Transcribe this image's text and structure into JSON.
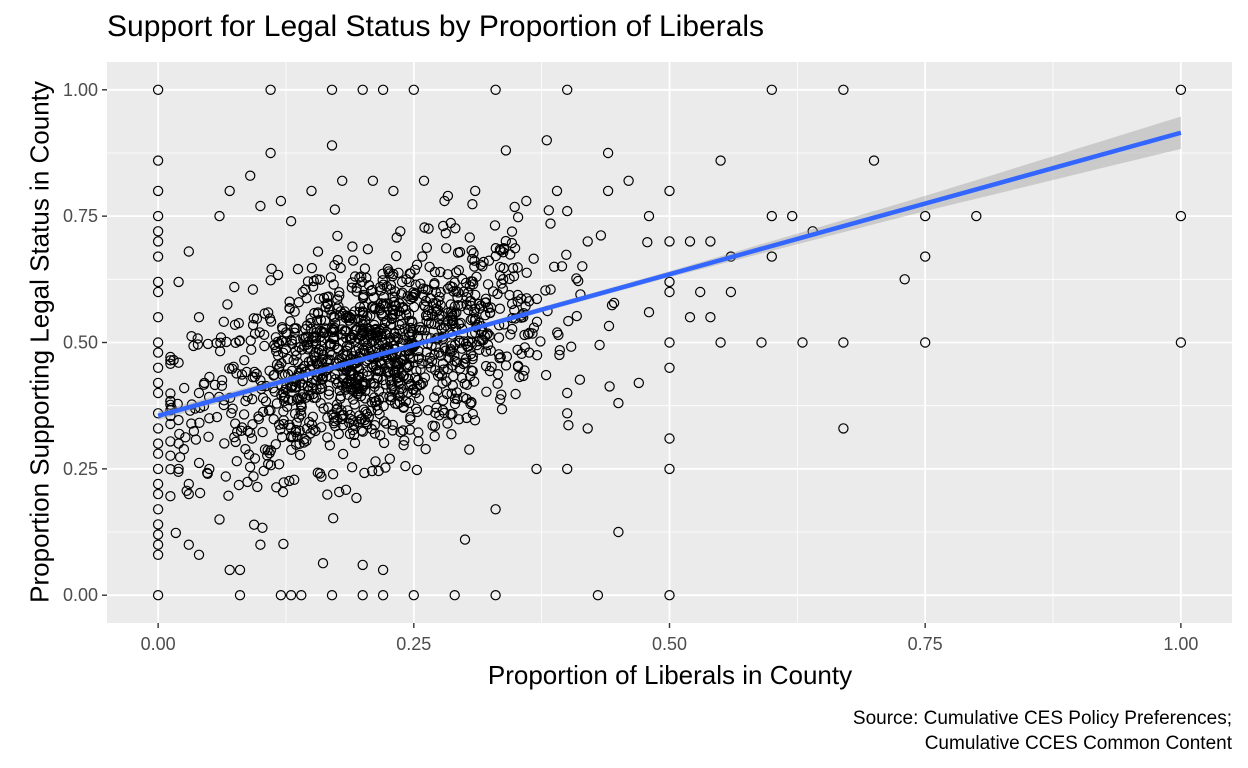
{
  "chart_data": {
    "type": "scatter",
    "title": "Support for Legal Status by Proportion of Liberals",
    "xlabel": "Proportion of Liberals in County",
    "ylabel": "Proportion Supporting Legal Status in County",
    "caption_lines": [
      "Source: Cumulative CES Policy Preferences;",
      "Cumulative CCES Common Content"
    ],
    "xlim": [
      -0.05,
      1.05
    ],
    "ylim": [
      -0.055,
      1.055
    ],
    "x_ticks": [
      0,
      0.25,
      0.5,
      0.75,
      1
    ],
    "x_tick_labels": [
      "0.00",
      "0.25",
      "0.50",
      "0.75",
      "1.00"
    ],
    "y_ticks": [
      0,
      0.25,
      0.5,
      0.75,
      1
    ],
    "y_tick_labels": [
      "0.00",
      "0.25",
      "0.50",
      "0.75",
      "1.00"
    ],
    "grid": true,
    "fit_line": {
      "method": "linear",
      "x": [
        0,
        1
      ],
      "y": [
        0.355,
        0.915
      ],
      "ci_halfwidth_at_x": [
        [
          0,
          0.009
        ],
        [
          0.25,
          0.004
        ],
        [
          0.5,
          0.006
        ],
        [
          0.75,
          0.015
        ],
        [
          1,
          0.032
        ]
      ],
      "color": "#3366FF"
    },
    "point_style": {
      "shape": "open-circle",
      "stroke": "#000000"
    },
    "points": [
      [
        0,
        1
      ],
      [
        0,
        0.86
      ],
      [
        0,
        0.8
      ],
      [
        0,
        0.75
      ],
      [
        0,
        0.72
      ],
      [
        0,
        0.7
      ],
      [
        0,
        0.67
      ],
      [
        0,
        0.62
      ],
      [
        0,
        0.6
      ],
      [
        0,
        0.55
      ],
      [
        0,
        0.5
      ],
      [
        0,
        0.48
      ],
      [
        0,
        0.45
      ],
      [
        0,
        0.42
      ],
      [
        0,
        0.4
      ],
      [
        0,
        0.36
      ],
      [
        0,
        0.33
      ],
      [
        0,
        0.3
      ],
      [
        0,
        0.28
      ],
      [
        0,
        0.25
      ],
      [
        0,
        0.22
      ],
      [
        0,
        0.2
      ],
      [
        0,
        0.17
      ],
      [
        0,
        0.14
      ],
      [
        0,
        0.12
      ],
      [
        0,
        0.1
      ],
      [
        0,
        0.08
      ],
      [
        0,
        0
      ],
      [
        1,
        1
      ],
      [
        1,
        0.75
      ],
      [
        1,
        0.5
      ],
      [
        0.11,
        1
      ],
      [
        0.17,
        1
      ],
      [
        0.2,
        1
      ],
      [
        0.22,
        1
      ],
      [
        0.25,
        1
      ],
      [
        0.33,
        1
      ],
      [
        0.4,
        1
      ],
      [
        0.6,
        1
      ],
      [
        0.67,
        1
      ],
      [
        0.11,
        0.875
      ],
      [
        0.17,
        0.89
      ],
      [
        0.38,
        0.9
      ],
      [
        0.44,
        0.875
      ],
      [
        0.7,
        0.86
      ],
      [
        0.55,
        0.86
      ],
      [
        0.8,
        0.75
      ],
      [
        0.75,
        0.75
      ],
      [
        0.75,
        0.67
      ],
      [
        0.73,
        0.625
      ],
      [
        0.6,
        0.75
      ],
      [
        0.62,
        0.75
      ],
      [
        0.64,
        0.72
      ],
      [
        0.6,
        0.67
      ],
      [
        0.67,
        0.5
      ],
      [
        0.63,
        0.5
      ],
      [
        0.59,
        0.5
      ],
      [
        0.75,
        0.5
      ],
      [
        0.67,
        0.33
      ],
      [
        0.5,
        0.45
      ],
      [
        0.5,
        0.31
      ],
      [
        0.5,
        0.25
      ],
      [
        0.45,
        0.125
      ],
      [
        0.5,
        0
      ],
      [
        0.5,
        0.5
      ],
      [
        0.43,
        0
      ],
      [
        0.33,
        0
      ],
      [
        0.29,
        0
      ],
      [
        0.25,
        0
      ],
      [
        0.22,
        0
      ],
      [
        0.2,
        0
      ],
      [
        0.17,
        0
      ],
      [
        0.14,
        0
      ],
      [
        0.13,
        0
      ],
      [
        0.12,
        0
      ],
      [
        0.08,
        0
      ],
      [
        0.07,
        0.05
      ],
      [
        0.22,
        0.05
      ],
      [
        0.08,
        0.05
      ],
      [
        0.1,
        0.1
      ],
      [
        0.33,
        0.17
      ],
      [
        0.3,
        0.11
      ],
      [
        0.2,
        0.06
      ],
      [
        0.04,
        0.08
      ],
      [
        0.03,
        0.2
      ],
      [
        0.37,
        0.25
      ],
      [
        0.4,
        0.25
      ],
      [
        0.42,
        0.33
      ],
      [
        0.4,
        0.4
      ],
      [
        0.4,
        0.36
      ],
      [
        0.45,
        0.38
      ],
      [
        0.47,
        0.42
      ],
      [
        0.55,
        0.5
      ],
      [
        0.56,
        0.6
      ],
      [
        0.54,
        0.55
      ],
      [
        0.56,
        0.67
      ],
      [
        0.48,
        0.56
      ],
      [
        0.5,
        0.62
      ],
      [
        0.5,
        0.6
      ],
      [
        0.52,
        0.55
      ],
      [
        0.53,
        0.6
      ],
      [
        0.52,
        0.7
      ],
      [
        0.54,
        0.7
      ],
      [
        0.5,
        0.7
      ],
      [
        0.48,
        0.75
      ],
      [
        0.5,
        0.8
      ],
      [
        0.44,
        0.8
      ],
      [
        0.46,
        0.82
      ],
      [
        0.39,
        0.8
      ],
      [
        0.4,
        0.76
      ],
      [
        0.42,
        0.7
      ],
      [
        0.36,
        0.78
      ],
      [
        0.34,
        0.88
      ],
      [
        0.02,
        0.62
      ],
      [
        0.03,
        0.68
      ],
      [
        0.02,
        0.46
      ],
      [
        0.02,
        0.3
      ],
      [
        0.02,
        0.25
      ],
      [
        0.03,
        0.22
      ],
      [
        0.04,
        0.55
      ],
      [
        0.03,
        0.1
      ],
      [
        0.05,
        0.25
      ],
      [
        0.06,
        0.15
      ],
      [
        0.05,
        0.35
      ],
      [
        0.04,
        0.4
      ],
      [
        0.06,
        0.75
      ],
      [
        0.07,
        0.8
      ],
      [
        0.09,
        0.83
      ],
      [
        0.1,
        0.77
      ],
      [
        0.12,
        0.78
      ],
      [
        0.13,
        0.74
      ],
      [
        0.15,
        0.8
      ],
      [
        0.18,
        0.82
      ],
      [
        0.21,
        0.82
      ],
      [
        0.23,
        0.8
      ],
      [
        0.26,
        0.82
      ],
      [
        0.28,
        0.78
      ],
      [
        0.31,
        0.8
      ]
    ]
  }
}
